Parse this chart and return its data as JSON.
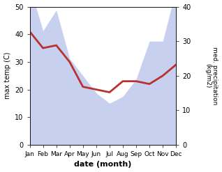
{
  "months": [
    "Jan",
    "Feb",
    "Mar",
    "Apr",
    "May",
    "Jun",
    "Jul",
    "Aug",
    "Sep",
    "Oct",
    "Nov",
    "Dec"
  ],
  "max_temp": [
    41,
    35,
    36,
    30,
    21,
    20,
    19,
    23,
    23,
    22,
    25,
    29
  ],
  "precipitation": [
    46,
    33,
    39,
    25,
    20,
    15,
    12,
    14,
    19,
    30,
    30,
    45
  ],
  "temp_ylim": [
    0,
    50
  ],
  "precip_ylim": [
    0,
    40
  ],
  "temp_color": "#b83232",
  "precip_fill_color": "#c8d0f0",
  "xlabel": "date (month)",
  "ylabel_left": "max temp (C)",
  "ylabel_right": "med. precipitation\n(kg/m2)",
  "temp_linewidth": 2.0,
  "fig_bg": "#ffffff"
}
